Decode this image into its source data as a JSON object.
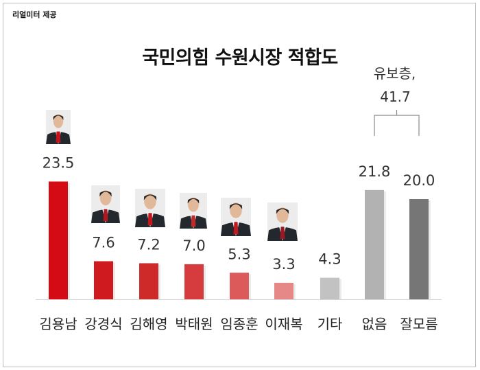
{
  "source": "리얼미터 제공",
  "title": "국민의힘 수원시장 적합도",
  "chart_data": {
    "type": "bar",
    "title": "국민의힘 수원시장 적합도",
    "categories": [
      "김용남",
      "강경식",
      "김해영",
      "박태원",
      "임종훈",
      "이재복",
      "기타",
      "없음",
      "잘모름"
    ],
    "values": [
      23.5,
      7.6,
      7.2,
      7.0,
      5.3,
      3.3,
      4.3,
      21.8,
      20.0
    ],
    "value_labels": [
      "23.5",
      "7.6",
      "7.2",
      "7.0",
      "5.3",
      "3.3",
      "4.3",
      "21.8",
      "20.0"
    ],
    "ylim": [
      0,
      25
    ],
    "grid": false,
    "colors": [
      "#d40a14",
      "#cf1a1f",
      "#cf2a2a",
      "#d63b3e",
      "#dc5a5a",
      "#e68888",
      "#c2c2c2",
      "#b2b2b2",
      "#767676"
    ],
    "annotation": {
      "text_line1": "유보층,",
      "text_line2": "41.7",
      "spans": [
        "없음",
        "잘모름"
      ]
    }
  }
}
